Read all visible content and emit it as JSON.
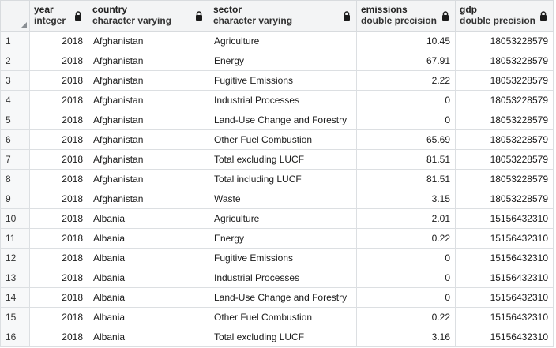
{
  "columns": [
    {
      "name": "year",
      "type": "integer"
    },
    {
      "name": "country",
      "type": "character varying"
    },
    {
      "name": "sector",
      "type": "character varying"
    },
    {
      "name": "emissions",
      "type": "double precision"
    },
    {
      "name": "gdp",
      "type": "double precision"
    }
  ],
  "rows": [
    {
      "n": "1",
      "year": "2018",
      "country": "Afghanistan",
      "sector": "Agriculture",
      "emissions": "10.45",
      "gdp": "18053228579"
    },
    {
      "n": "2",
      "year": "2018",
      "country": "Afghanistan",
      "sector": "Energy",
      "emissions": "67.91",
      "gdp": "18053228579"
    },
    {
      "n": "3",
      "year": "2018",
      "country": "Afghanistan",
      "sector": "Fugitive Emissions",
      "emissions": "2.22",
      "gdp": "18053228579"
    },
    {
      "n": "4",
      "year": "2018",
      "country": "Afghanistan",
      "sector": "Industrial Processes",
      "emissions": "0",
      "gdp": "18053228579"
    },
    {
      "n": "5",
      "year": "2018",
      "country": "Afghanistan",
      "sector": "Land-Use Change and Forestry",
      "emissions": "0",
      "gdp": "18053228579"
    },
    {
      "n": "6",
      "year": "2018",
      "country": "Afghanistan",
      "sector": "Other Fuel Combustion",
      "emissions": "65.69",
      "gdp": "18053228579"
    },
    {
      "n": "7",
      "year": "2018",
      "country": "Afghanistan",
      "sector": "Total excluding LUCF",
      "emissions": "81.51",
      "gdp": "18053228579"
    },
    {
      "n": "8",
      "year": "2018",
      "country": "Afghanistan",
      "sector": "Total including LUCF",
      "emissions": "81.51",
      "gdp": "18053228579"
    },
    {
      "n": "9",
      "year": "2018",
      "country": "Afghanistan",
      "sector": "Waste",
      "emissions": "3.15",
      "gdp": "18053228579"
    },
    {
      "n": "10",
      "year": "2018",
      "country": "Albania",
      "sector": "Agriculture",
      "emissions": "2.01",
      "gdp": "15156432310"
    },
    {
      "n": "11",
      "year": "2018",
      "country": "Albania",
      "sector": "Energy",
      "emissions": "0.22",
      "gdp": "15156432310"
    },
    {
      "n": "12",
      "year": "2018",
      "country": "Albania",
      "sector": "Fugitive Emissions",
      "emissions": "0",
      "gdp": "15156432310"
    },
    {
      "n": "13",
      "year": "2018",
      "country": "Albania",
      "sector": "Industrial Processes",
      "emissions": "0",
      "gdp": "15156432310"
    },
    {
      "n": "14",
      "year": "2018",
      "country": "Albania",
      "sector": "Land-Use Change and Forestry",
      "emissions": "0",
      "gdp": "15156432310"
    },
    {
      "n": "15",
      "year": "2018",
      "country": "Albania",
      "sector": "Other Fuel Combustion",
      "emissions": "0.22",
      "gdp": "15156432310"
    },
    {
      "n": "16",
      "year": "2018",
      "country": "Albania",
      "sector": "Total excluding LUCF",
      "emissions": "3.16",
      "gdp": "15156432310"
    }
  ],
  "icons": {
    "lock": "lock-icon",
    "corner": "select-all-corner"
  }
}
